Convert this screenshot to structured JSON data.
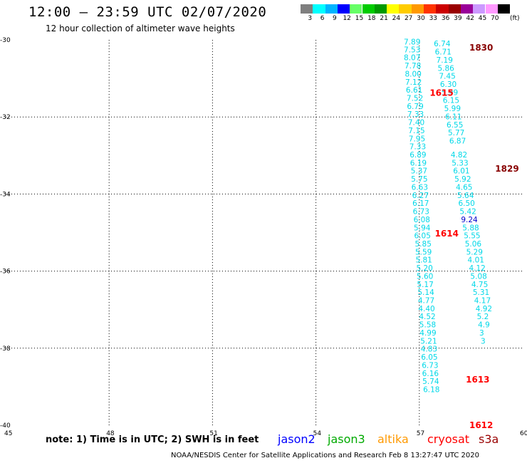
{
  "header": {
    "title": "12:00 – 23:59 UTC 02/07/2020",
    "subtitle": "12 hour collection of altimeter wave heights"
  },
  "legend": {
    "unit": "(ft)",
    "bins": [
      {
        "label": "3",
        "color": "#7f7f7f"
      },
      {
        "label": "6",
        "color": "#00ffff"
      },
      {
        "label": "9",
        "color": "#00b4ff"
      },
      {
        "label": "12",
        "color": "#0000ff"
      },
      {
        "label": "15",
        "color": "#66ff66"
      },
      {
        "label": "18",
        "color": "#00cc00"
      },
      {
        "label": "21",
        "color": "#009900"
      },
      {
        "label": "24",
        "color": "#ffff00"
      },
      {
        "label": "27",
        "color": "#ffcc00"
      },
      {
        "label": "30",
        "color": "#ff9900"
      },
      {
        "label": "33",
        "color": "#ff3300"
      },
      {
        "label": "36",
        "color": "#cc0000"
      },
      {
        "label": "39",
        "color": "#990000"
      },
      {
        "label": "42",
        "color": "#990099"
      },
      {
        "label": "45",
        "color": "#cc99ff"
      },
      {
        "label": "70",
        "color": "#ff99ff"
      },
      {
        "label": "",
        "color": "#000000"
      }
    ]
  },
  "footer": {
    "note": "note:  1) Time is in UTC;  2) SWH is in feet",
    "credit": "NOAA/NESDIS Center for Satellite Applications and Research    Feb  8 13:27:47 UTC 2020",
    "satellites": [
      {
        "name": "jason2",
        "color": "#0000ff"
      },
      {
        "name": "jason3",
        "color": "#00aa00"
      },
      {
        "name": "altika",
        "color": "#ff9900"
      },
      {
        "name": "cryosat",
        "color": "#ff0000"
      },
      {
        "name": "s3a",
        "color": "#990000"
      }
    ]
  },
  "chart_data": {
    "type": "scatter",
    "xlabel": "",
    "ylabel": "",
    "xlim": [
      45,
      60
    ],
    "ylim": [
      -40,
      -30
    ],
    "x_ticks": [
      "45",
      "48",
      "51",
      "54",
      "57",
      "60"
    ],
    "y_ticks": [
      "-30",
      "-32",
      "-34",
      "-36",
      "-38",
      "-40"
    ],
    "grid": true,
    "point_color": "#00d8e8",
    "series": [
      {
        "points": [
          {
            "x": 56.55,
            "y": -30.12,
            "v": "7.89"
          },
          {
            "x": 56.55,
            "y": -30.32,
            "v": "7.53"
          },
          {
            "x": 56.55,
            "y": -30.53,
            "v": "8.07"
          },
          {
            "x": 56.57,
            "y": -30.74,
            "v": "7.78"
          },
          {
            "x": 56.58,
            "y": -30.95,
            "v": "8.00"
          },
          {
            "x": 56.59,
            "y": -31.16,
            "v": "7.12"
          },
          {
            "x": 56.61,
            "y": -31.37,
            "v": "6.61"
          },
          {
            "x": 56.63,
            "y": -31.58,
            "v": "7.52"
          },
          {
            "x": 56.64,
            "y": -31.79,
            "v": "6.79"
          },
          {
            "x": 56.65,
            "y": -32.0,
            "v": "7.33"
          },
          {
            "x": 56.67,
            "y": -32.21,
            "v": "7.40"
          },
          {
            "x": 56.68,
            "y": -32.42,
            "v": "7.15"
          },
          {
            "x": 56.69,
            "y": -32.63,
            "v": "7.95"
          },
          {
            "x": 56.71,
            "y": -32.84,
            "v": "7.33"
          },
          {
            "x": 56.72,
            "y": -33.05,
            "v": "6.89"
          },
          {
            "x": 56.73,
            "y": -33.26,
            "v": "6.19"
          },
          {
            "x": 56.75,
            "y": -33.47,
            "v": "5.37"
          },
          {
            "x": 56.76,
            "y": -33.68,
            "v": "5.75"
          },
          {
            "x": 56.77,
            "y": -33.89,
            "v": "6.63"
          },
          {
            "x": 56.79,
            "y": -34.1,
            "v": "6.27"
          },
          {
            "x": 56.8,
            "y": -34.31,
            "v": "6.17"
          },
          {
            "x": 56.81,
            "y": -34.52,
            "v": "6.73"
          },
          {
            "x": 56.83,
            "y": -34.73,
            "v": "6.08"
          },
          {
            "x": 56.84,
            "y": -34.94,
            "v": "5.94"
          },
          {
            "x": 56.85,
            "y": -35.15,
            "v": "6.05"
          },
          {
            "x": 56.87,
            "y": -35.36,
            "v": "5.85"
          },
          {
            "x": 56.88,
            "y": -35.57,
            "v": "5.59"
          },
          {
            "x": 56.89,
            "y": -35.78,
            "v": "5.81"
          },
          {
            "x": 56.91,
            "y": -35.99,
            "v": "5.20"
          },
          {
            "x": 56.92,
            "y": -36.2,
            "v": "5.60"
          },
          {
            "x": 56.93,
            "y": -36.41,
            "v": "5.17"
          },
          {
            "x": 56.95,
            "y": -36.62,
            "v": "5.14"
          },
          {
            "x": 56.96,
            "y": -36.83,
            "v": "4.77"
          },
          {
            "x": 56.97,
            "y": -37.04,
            "v": "4.40"
          },
          {
            "x": 56.99,
            "y": -37.25,
            "v": "4.52"
          },
          {
            "x": 57.0,
            "y": -37.46,
            "v": "5.58"
          },
          {
            "x": 57.01,
            "y": -37.67,
            "v": "4.99"
          },
          {
            "x": 57.03,
            "y": -37.88,
            "v": "5.21"
          },
          {
            "x": 57.04,
            "y": -38.09,
            "v": "4.83"
          },
          {
            "x": 57.05,
            "y": -38.3,
            "v": "6.05"
          },
          {
            "x": 57.07,
            "y": -38.51,
            "v": "6.73"
          },
          {
            "x": 57.08,
            "y": -38.72,
            "v": "6.16"
          },
          {
            "x": 57.09,
            "y": -38.93,
            "v": "5.74"
          },
          {
            "x": 57.11,
            "y": -39.14,
            "v": "6.18"
          }
        ]
      },
      {
        "points": [
          {
            "x": 57.42,
            "y": -30.17,
            "v": "6.74"
          },
          {
            "x": 57.45,
            "y": -30.38,
            "v": "6.71"
          },
          {
            "x": 57.49,
            "y": -30.59,
            "v": "7.19"
          },
          {
            "x": 57.53,
            "y": -30.8,
            "v": "5.86"
          },
          {
            "x": 57.57,
            "y": -31.01,
            "v": "7.45"
          },
          {
            "x": 57.6,
            "y": -31.22,
            "v": "6.30"
          },
          {
            "x": 57.64,
            "y": -31.43,
            "v": "5.99"
          },
          {
            "x": 57.68,
            "y": -31.64,
            "v": "6.15"
          },
          {
            "x": 57.72,
            "y": -31.85,
            "v": "5.99"
          },
          {
            "x": 57.75,
            "y": -32.06,
            "v": "6.11"
          },
          {
            "x": 57.79,
            "y": -32.27,
            "v": "6.55"
          },
          {
            "x": 57.83,
            "y": -32.48,
            "v": "5.77"
          },
          {
            "x": 57.87,
            "y": -32.69,
            "v": "6.87"
          },
          {
            "x": 57.91,
            "y": -33.05,
            "v": "4.82"
          },
          {
            "x": 57.94,
            "y": -33.26,
            "v": "5.33"
          },
          {
            "x": 57.98,
            "y": -33.47,
            "v": "6.01"
          },
          {
            "x": 58.02,
            "y": -33.68,
            "v": "5.92"
          },
          {
            "x": 58.06,
            "y": -33.89,
            "v": "4.65"
          },
          {
            "x": 58.1,
            "y": -34.1,
            "v": "5.64"
          },
          {
            "x": 58.13,
            "y": -34.31,
            "v": "6.50"
          },
          {
            "x": 58.17,
            "y": -34.52,
            "v": "5.42"
          },
          {
            "x": 58.21,
            "y": -34.73,
            "v": "9.24"
          },
          {
            "x": 58.25,
            "y": -34.94,
            "v": "5.88"
          },
          {
            "x": 58.29,
            "y": -35.15,
            "v": "5.55"
          },
          {
            "x": 58.32,
            "y": -35.36,
            "v": "5.06"
          },
          {
            "x": 58.36,
            "y": -35.57,
            "v": "5.29"
          },
          {
            "x": 58.4,
            "y": -35.78,
            "v": "4.01"
          },
          {
            "x": 58.44,
            "y": -35.99,
            "v": "4.12"
          },
          {
            "x": 58.48,
            "y": -36.2,
            "v": "5.08"
          },
          {
            "x": 58.51,
            "y": -36.41,
            "v": "4.75"
          },
          {
            "x": 58.55,
            "y": -36.62,
            "v": "5.31"
          },
          {
            "x": 58.59,
            "y": -36.83,
            "v": "4.17"
          },
          {
            "x": 58.63,
            "y": -37.04,
            "v": "4.92"
          },
          {
            "x": 58.67,
            "y": -37.25,
            "v": "5.2"
          },
          {
            "x": 58.7,
            "y": -37.46,
            "v": "4.9"
          },
          {
            "x": 58.74,
            "y": -37.67,
            "v": "3"
          },
          {
            "x": 58.78,
            "y": -37.88,
            "v": "3"
          }
        ]
      }
    ],
    "time_labels": [
      {
        "x": 58.45,
        "y": -30.2,
        "text": "1830",
        "color": "#880000"
      },
      {
        "x": 57.3,
        "y": -31.38,
        "text": "1615",
        "color": "#ff0000"
      },
      {
        "x": 59.2,
        "y": -33.35,
        "text": "1829",
        "color": "#880000"
      },
      {
        "x": 57.45,
        "y": -35.03,
        "text": "1614",
        "color": "#ff0000"
      },
      {
        "x": 58.35,
        "y": -38.82,
        "text": "1613",
        "color": "#ff0000"
      },
      {
        "x": 58.45,
        "y": -40.0,
        "text": "1612",
        "color": "#ff0000"
      }
    ]
  }
}
